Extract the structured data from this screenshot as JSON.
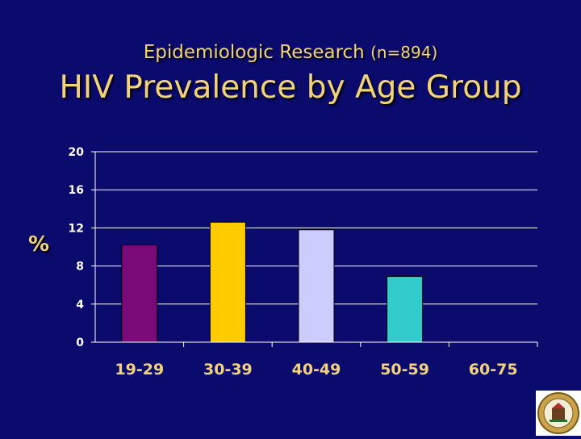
{
  "header": {
    "subtitle": "Epidemiologic Research",
    "subtitle_n": "(n=894)",
    "title": "HIV Prevalence by Age Group"
  },
  "chart_data": {
    "type": "bar",
    "title": "HIV Prevalence by Age Group",
    "xlabel": "",
    "ylabel": "%",
    "categories": [
      "19-29",
      "30-39",
      "40-49",
      "50-59",
      "60-75"
    ],
    "values": [
      10.2,
      12.6,
      11.8,
      6.9,
      0
    ],
    "colors": [
      "#7a0a78",
      "#ffcc00",
      "#ccccff",
      "#33cccc",
      "#888888"
    ],
    "ylim": [
      0,
      20
    ],
    "yticks": [
      "0",
      "4",
      "8",
      "12",
      "16",
      "20"
    ],
    "grid": true
  },
  "colors": {
    "background": "#0b0b6e",
    "title": "#f2d27a",
    "grid": "#ffffff"
  },
  "logo": {
    "icon": "county-seal-icon"
  }
}
